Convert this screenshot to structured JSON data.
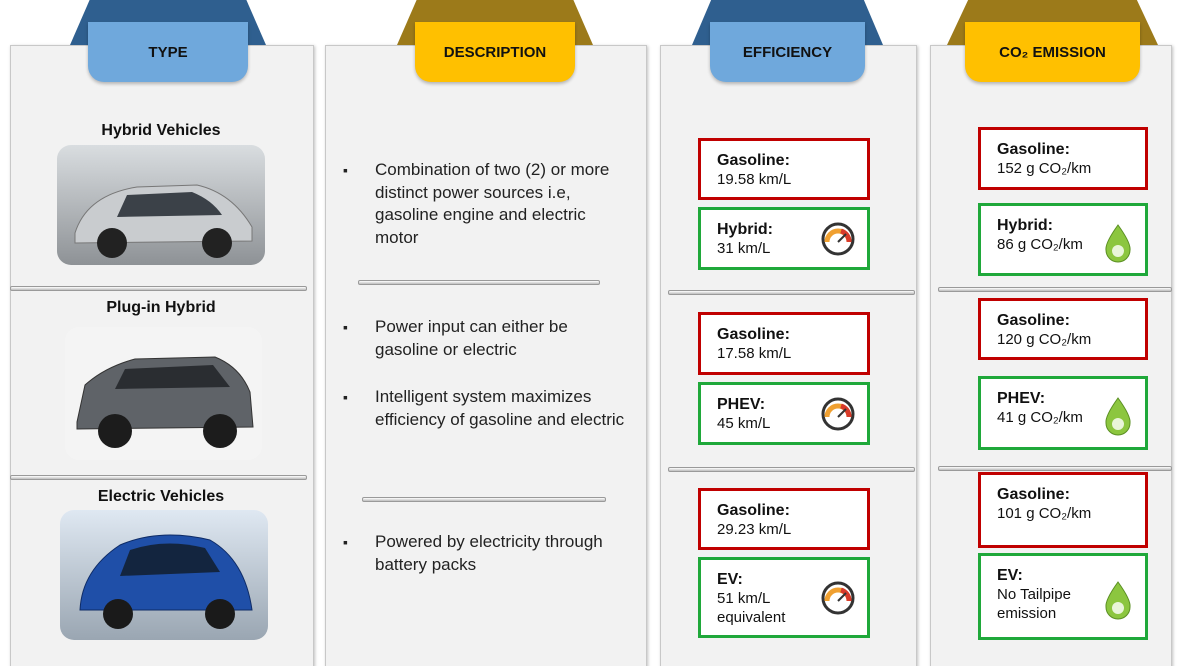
{
  "headers": [
    "TYPE",
    "DESCRIPTION",
    "EFFICIENCY",
    "CO₂ EMISSION"
  ],
  "types": [
    "Hybrid Vehicles",
    "Plug-in Hybrid",
    "Electric Vehicles"
  ],
  "descriptions": [
    [
      "Combination of two (2) or more distinct power sources i.e, gasoline engine and electric motor"
    ],
    [
      "Power input can either be gasoline or electric",
      "Intelligent system maximizes efficiency of gasoline and electric"
    ],
    [
      "Powered by electricity through battery packs"
    ]
  ],
  "efficiency": [
    {
      "gasoline": {
        "label": "Gasoline:",
        "lines": [
          "19.58 km/L"
        ]
      },
      "alternative": {
        "label": "Hybrid:",
        "lines": [
          "31 km/L"
        ]
      }
    },
    {
      "gasoline": {
        "label": "Gasoline:",
        "lines": [
          "17.58 km/L"
        ]
      },
      "alternative": {
        "label": "PHEV:",
        "lines": [
          "45 km/L"
        ]
      }
    },
    {
      "gasoline": {
        "label": "Gasoline:",
        "lines": [
          "29.23 km/L"
        ]
      },
      "alternative": {
        "label": "EV:",
        "lines": [
          "51 km/L",
          "equivalent"
        ]
      }
    }
  ],
  "emission": [
    {
      "gasoline": {
        "label": "Gasoline:",
        "lines": [
          "152 g CO₂/km"
        ]
      },
      "alternative": {
        "label": "Hybrid:",
        "lines": [
          "86 g CO₂/km"
        ]
      }
    },
    {
      "gasoline": {
        "label": "Gasoline:",
        "lines": [
          "120 g CO₂/km"
        ]
      },
      "alternative": {
        "label": "PHEV:",
        "lines": [
          "41 g CO₂/km"
        ]
      }
    },
    {
      "gasoline": {
        "label": "Gasoline:",
        "lines": [
          "101 g CO₂/km"
        ]
      },
      "alternative": {
        "label": "EV:",
        "lines": [
          "No Tailpipe",
          "emission"
        ]
      }
    }
  ]
}
